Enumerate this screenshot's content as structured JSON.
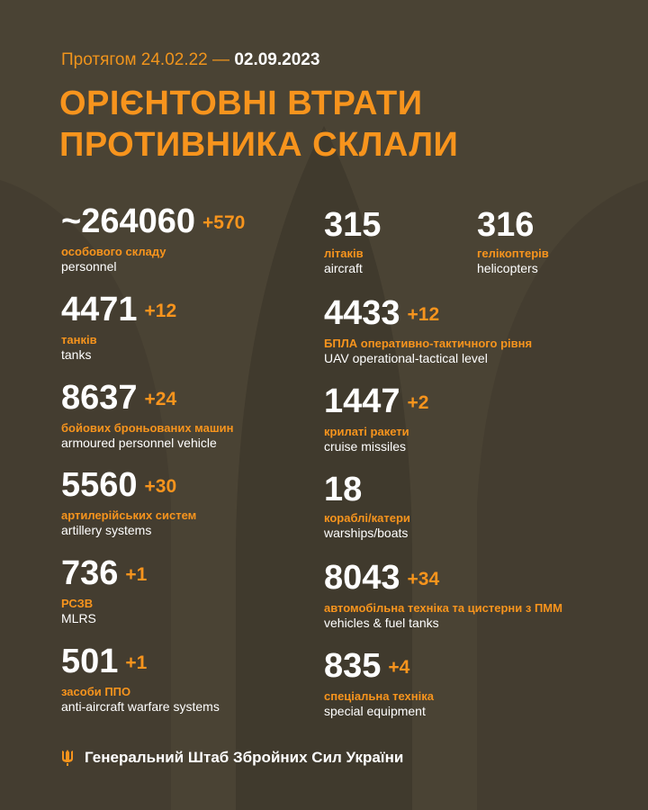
{
  "header": {
    "period_prefix": "Протягом 24.02.22 —",
    "period_date": "02.09.2023",
    "title_line1": "ОРІЄНТОВНІ ВТРАТИ",
    "title_line2": "ПРОТИВНИКА СКЛАЛИ"
  },
  "colors": {
    "background": "#4a4334",
    "accent": "#f7941d",
    "text": "#ffffff"
  },
  "left": [
    {
      "value": "~264060",
      "delta": "+570",
      "ua": "особового складу",
      "en": "personnel"
    },
    {
      "value": "4471",
      "delta": "+12",
      "ua": "танків",
      "en": "tanks"
    },
    {
      "value": "8637",
      "delta": "+24",
      "ua": "бойових броньованих машин",
      "en": "armoured personnel vehicle"
    },
    {
      "value": "5560",
      "delta": "+30",
      "ua": "артилерійських систем",
      "en": "artillery systems"
    },
    {
      "value": "736",
      "delta": "+1",
      "ua": "РСЗВ",
      "en": "MLRS"
    },
    {
      "value": "501",
      "delta": "+1",
      "ua": "засоби ППО",
      "en": "anti-aircraft warfare systems"
    }
  ],
  "right": [
    {
      "value": "315",
      "delta": "",
      "ua": "літаків",
      "en": "aircraft"
    },
    {
      "value": "316",
      "delta": "",
      "ua": "гелікоптерів",
      "en": "helicopters"
    },
    {
      "value": "4433",
      "delta": "+12",
      "ua": "БПЛА оперативно-тактичного рівня",
      "en": "UAV operational-tactical level"
    },
    {
      "value": "1447",
      "delta": "+2",
      "ua": "крилаті ракети",
      "en": "cruise missiles"
    },
    {
      "value": "18",
      "delta": "",
      "ua": "кораблі/катери",
      "en": "warships/boats"
    },
    {
      "value": "8043",
      "delta": "+34",
      "ua": "автомобільна техніка та цистерни з ПММ",
      "en": "vehicles & fuel tanks"
    },
    {
      "value": "835",
      "delta": "+4",
      "ua": "спеціальна техніка",
      "en": "special equipment"
    }
  ],
  "footer": {
    "icon": "trident-icon",
    "text": "Генеральний Штаб Збройних Сил України"
  }
}
